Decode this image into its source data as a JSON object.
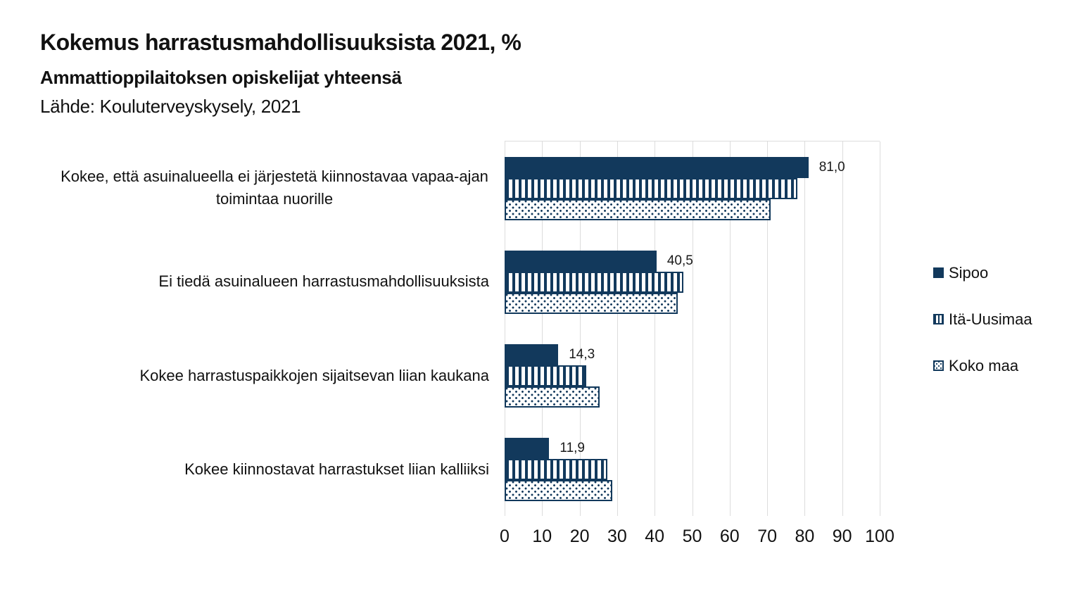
{
  "header": {
    "title": "Kokemus harrastusmahdollisuuksista 2021, %",
    "subtitle": "Ammattioppilaitoksen opiskelijat yhteensä",
    "source": "Lähde: Kouluterveyskysely, 2021"
  },
  "colors": {
    "navy": "#12395c",
    "grid": "#dcdcdc",
    "text": "#111111"
  },
  "chart_data": {
    "type": "bar",
    "orientation": "horizontal",
    "title": "Kokemus harrastusmahdollisuuksista 2021, %",
    "categories": [
      "Kokee, että asuinalueella ei järjestetä kiinnostavaa vapaa-ajan toimintaa nuorille",
      "Ei tiedä asuinalueen harrastusmahdollisuuksista",
      "Kokee harrastuspaikkojen sijaitsevan liian kaukana",
      "Kokee kiinnostavat harrastukset liian kalliiksi"
    ],
    "series": [
      {
        "name": "Sipoo",
        "pattern": "solid",
        "values": [
          81.0,
          40.5,
          14.3,
          11.9
        ],
        "value_labels": [
          "81,0",
          "40,5",
          "14,3",
          "11,9"
        ]
      },
      {
        "name": "Itä-Uusimaa",
        "pattern": "vertical-stripes",
        "values": [
          78.0,
          47.7,
          21.7,
          27.4
        ]
      },
      {
        "name": "Koko maa",
        "pattern": "dots",
        "values": [
          71.0,
          46.2,
          25.3,
          28.7
        ]
      }
    ],
    "xlim": [
      0,
      100
    ],
    "xticks": [
      0,
      10,
      20,
      30,
      40,
      50,
      60,
      70,
      80,
      90,
      100
    ],
    "grid": "vertical",
    "legend_position": "right"
  }
}
